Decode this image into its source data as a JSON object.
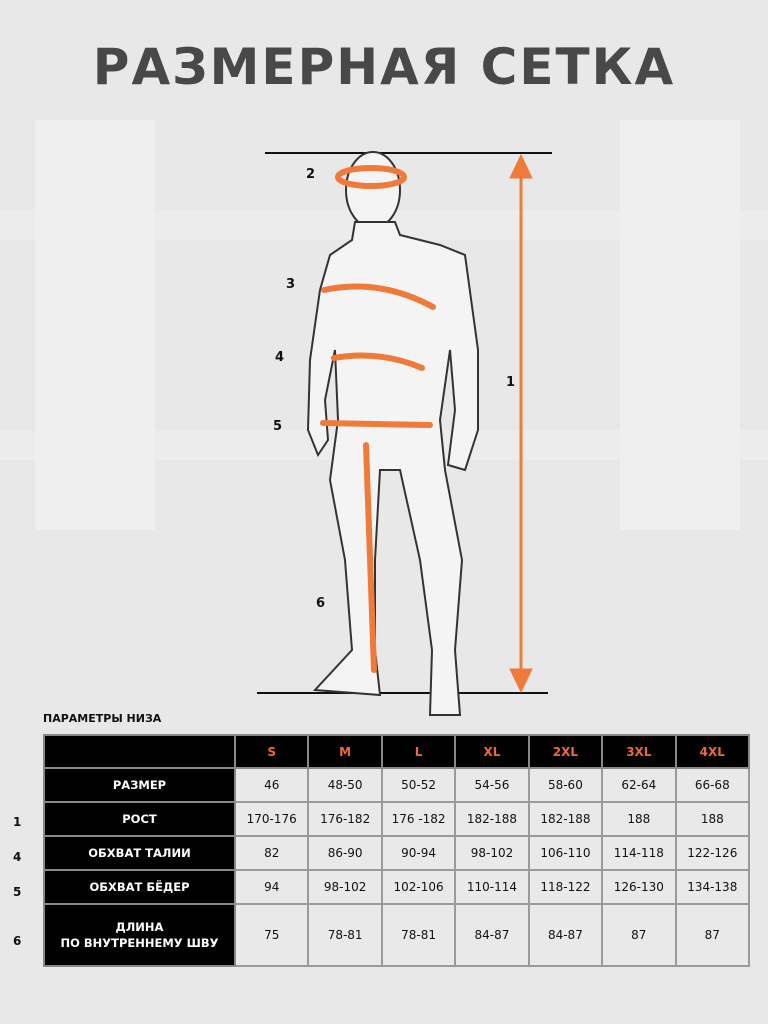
{
  "title": "РАЗМЕРНАЯ СЕТКА",
  "figure": {
    "labels": [
      "1",
      "2",
      "3",
      "4",
      "5",
      "6"
    ],
    "accent": "#f07a3a"
  },
  "table": {
    "caption": "ПАРАМЕТРЫ НИЗА",
    "sizes": [
      "S",
      "M",
      "L",
      "XL",
      "2XL",
      "3XL",
      "4XL"
    ],
    "rows": [
      {
        "marker": "",
        "label": "РАЗМЕР",
        "values": [
          "46",
          "48-50",
          "50-52",
          "54-56",
          "58-60",
          "62-64",
          "66-68"
        ]
      },
      {
        "marker": "1",
        "label": "РОСТ",
        "values": [
          "170-176",
          "176-182",
          "176 -182",
          "182-188",
          "182-188",
          "188",
          "188"
        ]
      },
      {
        "marker": "4",
        "label": "ОБХВАТ ТАЛИИ",
        "values": [
          "82",
          "86-90",
          "90-94",
          "98-102",
          "106-110",
          "114-118",
          "122-126"
        ]
      },
      {
        "marker": "5",
        "label": "ОБХВАТ БЁДЕР",
        "values": [
          "94",
          "98-102",
          "102-106",
          "110-114",
          "118-122",
          "126-130",
          "134-138"
        ]
      },
      {
        "marker": "6",
        "label": "ДЛИНА",
        "label2": "ПО ВНУТРЕННЕМУ ШВУ",
        "values": [
          "75",
          "78-81",
          "78-81",
          "84-87",
          "84-87",
          "87",
          "87"
        ]
      }
    ]
  }
}
